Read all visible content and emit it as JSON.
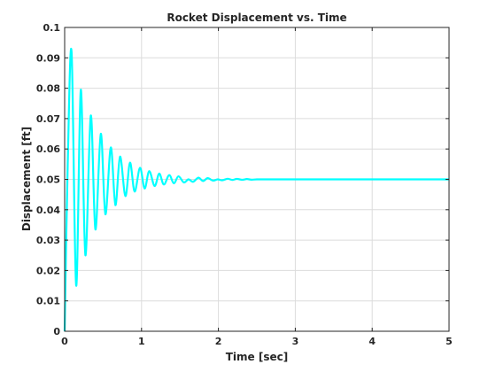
{
  "chart_data": {
    "type": "line",
    "title": "Rocket Displacement vs. Time",
    "xlabel": "Time [sec]",
    "ylabel": "Displacement [ft]",
    "xlim": [
      0,
      5
    ],
    "ylim": [
      0,
      0.1
    ],
    "xticks": [
      "0",
      "1",
      "2",
      "3",
      "4",
      "5"
    ],
    "yticks": [
      "0",
      "0.01",
      "0.02",
      "0.03",
      "0.04",
      "0.05",
      "0.06",
      "0.07",
      "0.08",
      "0.09",
      "0.1"
    ],
    "grid": true,
    "legend": "none",
    "colors": {
      "line": "#00FFFF",
      "grid": "#dcdcdc",
      "axis": "#262626"
    },
    "series": [
      {
        "x": [
          0.0,
          0.04,
          0.09,
          0.15,
          0.21,
          0.27,
          0.34,
          0.4,
          0.47,
          0.53,
          0.6,
          0.66,
          0.72,
          0.79,
          0.85,
          0.91,
          0.98,
          1.04,
          1.1,
          1.17,
          1.23,
          1.29,
          1.36,
          1.42,
          1.48,
          1.55,
          1.61,
          1.67,
          1.74,
          1.8,
          1.86,
          1.93,
          1.99,
          2.05,
          2.12,
          2.18,
          2.24,
          2.31,
          2.37,
          2.43,
          2.5,
          2.6,
          2.8,
          3.0,
          3.5,
          4.0,
          4.5,
          5.0
        ],
        "y": [
          0.0,
          0.055,
          0.092,
          0.015,
          0.0795,
          0.025,
          0.071,
          0.0335,
          0.065,
          0.0385,
          0.0605,
          0.0415,
          0.0575,
          0.0445,
          0.0555,
          0.046,
          0.0538,
          0.047,
          0.0527,
          0.0478,
          0.0519,
          0.0483,
          0.0514,
          0.0487,
          0.051,
          0.049,
          0.05,
          0.0492,
          0.05055,
          0.04945,
          0.0504,
          0.0496,
          0.05,
          0.0497,
          0.0502,
          0.0498,
          0.05015,
          0.04985,
          0.0501,
          0.0499,
          0.05,
          0.05,
          0.05,
          0.05,
          0.05,
          0.05,
          0.05,
          0.05
        ]
      }
    ]
  }
}
